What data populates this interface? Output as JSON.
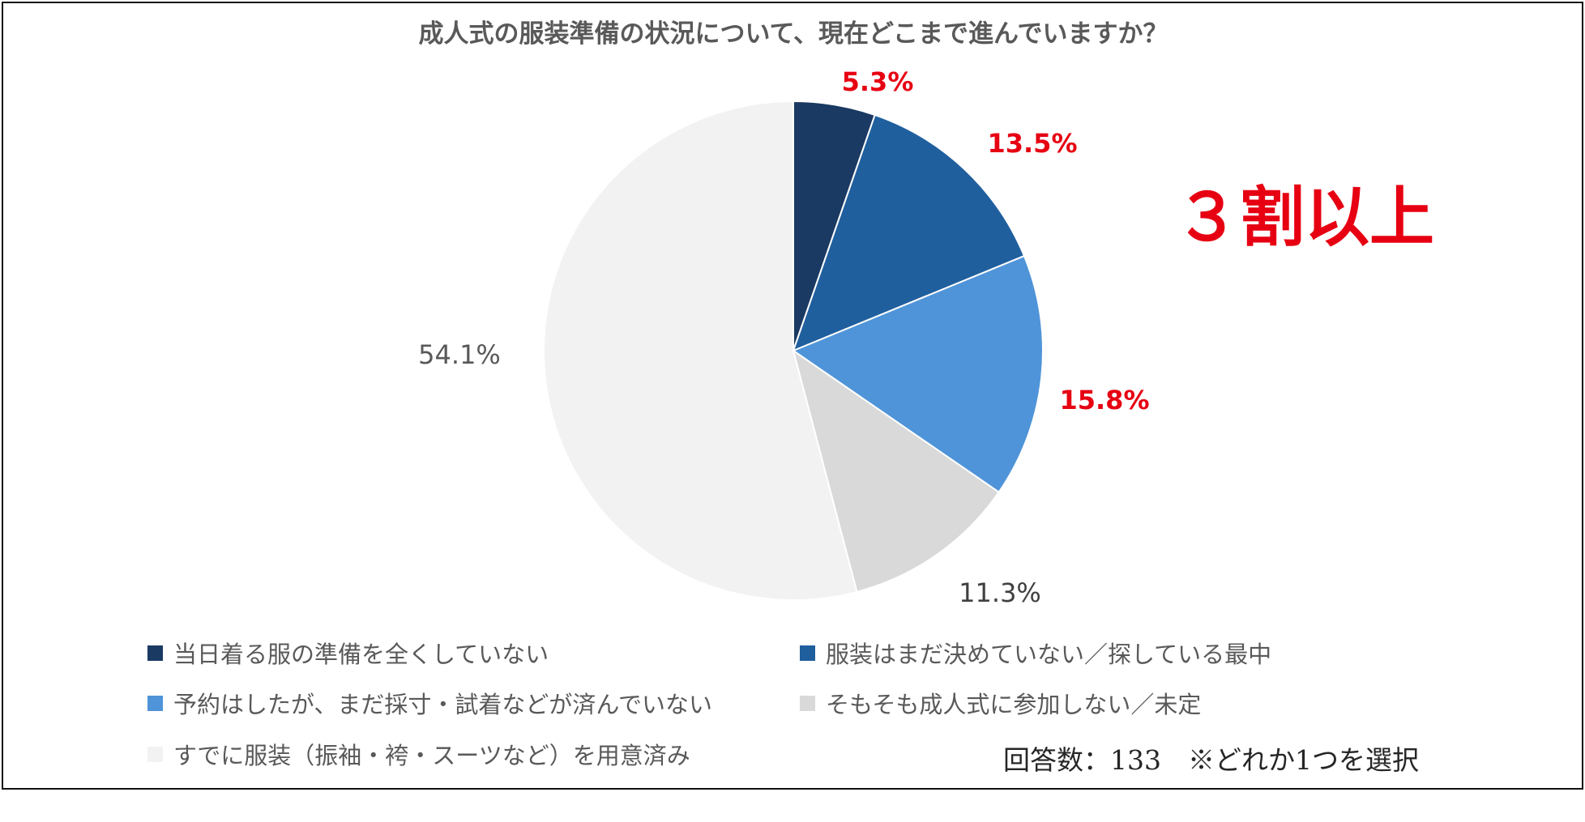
{
  "chart_data": {
    "type": "pie",
    "title": "成人式の服装準備の状況について、現在どこまで進んでいますか？",
    "slices": [
      {
        "name": "当日着る服の準備を全くしていない",
        "value": 5.3,
        "label": "5.3%",
        "color": "#1a3a63",
        "label_color": "#e60012"
      },
      {
        "name": "服装はまだ決めていない／探している最中",
        "value": 13.5,
        "label": "13.5%",
        "color": "#205f9e",
        "label_color": "#e60012"
      },
      {
        "name": "予約はしたが、まだ採寸・試着などが済んでいない",
        "value": 15.8,
        "label": "15.8%",
        "color": "#4f94d8",
        "label_color": "#e60012"
      },
      {
        "name": "そもそも成人式に参加しない／未定",
        "value": 11.3,
        "label": "11.3%",
        "color": "#d9d9d9",
        "label_color": "#404040"
      },
      {
        "name": "すでに服装（振袖・袴・スーツなど）を用意済み",
        "value": 54.1,
        "label": "54.1%",
        "color": "#f2f2f2",
        "label_color": "#595959"
      }
    ],
    "annotation": "３割以上",
    "annotation_color": "#e60012",
    "legend_position": "bottom"
  },
  "footnote": "回答数：133　※どれか1つを選択"
}
